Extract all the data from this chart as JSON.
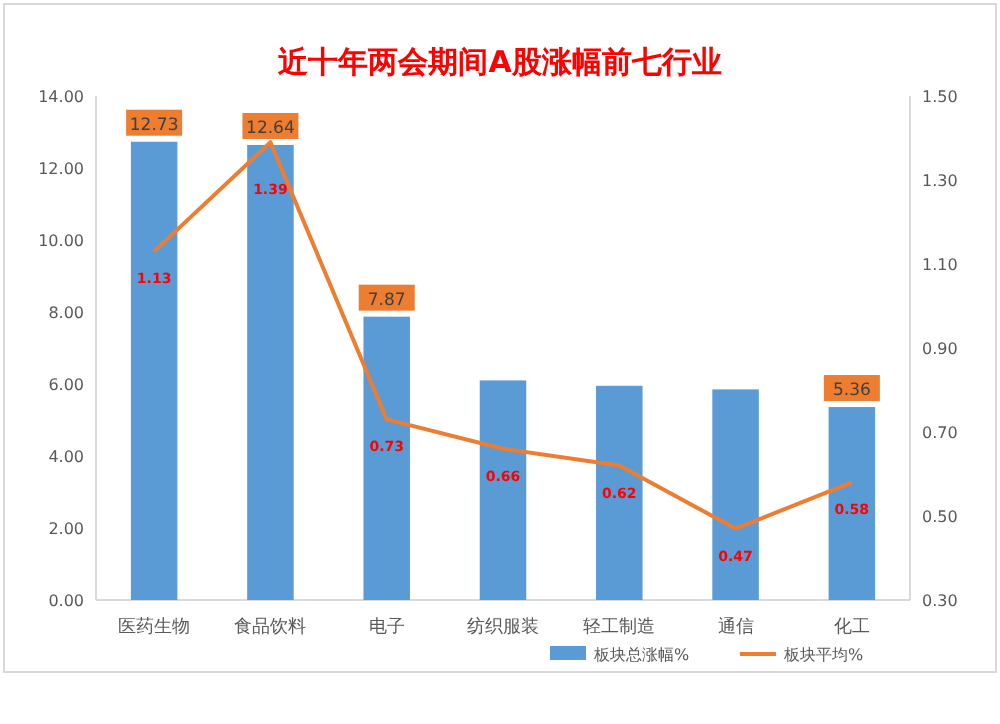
{
  "chart_data": {
    "type": "bar",
    "title": "近十年两会期间A股涨幅前七行业",
    "categories": [
      "医药生物",
      "食品饮料",
      "电子",
      "纺织服装",
      "轻工制造",
      "通信",
      "化工"
    ],
    "series": [
      {
        "name": "板块总涨幅%",
        "color": "#5b9bd5",
        "values": [
          12.73,
          12.64,
          7.87,
          6.1,
          5.95,
          5.85,
          5.36
        ],
        "value_labels": [
          "12.73",
          "12.64",
          "7.87",
          null,
          null,
          null,
          "5.36"
        ]
      },
      {
        "name": "板块平均%",
        "type": "line",
        "axis": "y2",
        "color": "#ed7d31",
        "values": [
          1.13,
          1.39,
          0.73,
          0.66,
          0.62,
          0.47,
          0.58
        ],
        "value_labels": [
          "1.13",
          "1.39",
          "0.73",
          "0.66",
          "0.62",
          "0.47",
          "0.58"
        ]
      }
    ],
    "ylim": [
      0,
      14
    ],
    "yticks": [
      {
        "value": 0,
        "label": "0.00"
      },
      {
        "value": 2,
        "label": "2.00"
      },
      {
        "value": 4,
        "label": "4.00"
      },
      {
        "value": 6,
        "label": "6.00"
      },
      {
        "value": 8,
        "label": "8.00"
      },
      {
        "value": 10,
        "label": "10.00"
      },
      {
        "value": 12,
        "label": "12.00"
      },
      {
        "value": 14,
        "label": "14.00"
      }
    ],
    "y2lim": [
      0.3,
      1.5
    ],
    "y2ticks": [
      {
        "value": 0.3,
        "label": "0.30"
      },
      {
        "value": 0.5,
        "label": "0.50"
      },
      {
        "value": 0.7,
        "label": "0.70"
      },
      {
        "value": 0.9,
        "label": "0.90"
      },
      {
        "value": 1.1,
        "label": "1.10"
      },
      {
        "value": 1.3,
        "label": "1.30"
      },
      {
        "value": 1.5,
        "label": "1.50"
      }
    ],
    "legend": "bottom",
    "grid": false
  }
}
